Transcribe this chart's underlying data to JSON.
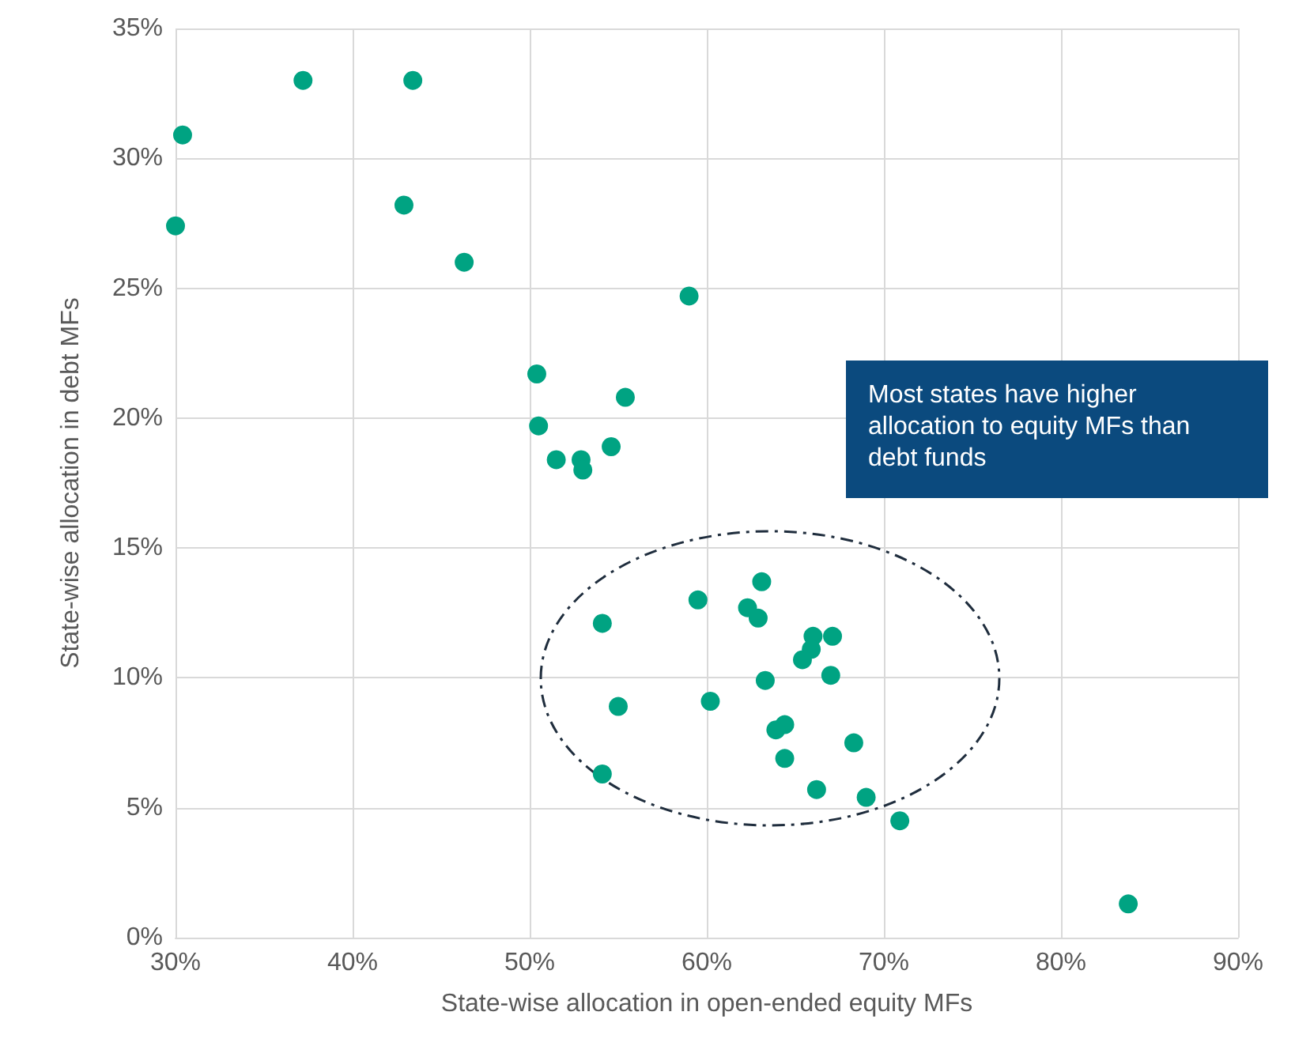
{
  "chart_data": {
    "type": "scatter",
    "xlabel": "State-wise allocation in open-ended equity MFs",
    "ylabel": "State-wise allocation in debt MFs",
    "annotations": [
      "Most states have higher allocation to equity MFs than debt funds"
    ],
    "x": [
      30.0,
      30.4,
      37.2,
      43.4,
      42.9,
      46.3,
      59.0,
      50.4,
      50.5,
      55.4,
      51.5,
      52.9,
      53.0,
      54.6,
      63.1,
      59.5,
      62.3,
      62.9,
      54.1,
      66.0,
      67.1,
      65.9,
      65.4,
      63.3,
      67.0,
      60.2,
      55.0,
      64.4,
      63.9,
      68.3,
      64.4,
      54.1,
      66.2,
      69.0,
      70.9,
      83.8
    ],
    "values": [
      27.4,
      30.9,
      33.0,
      33.0,
      28.2,
      26.0,
      24.7,
      21.7,
      19.7,
      20.8,
      18.4,
      18.4,
      18.0,
      18.9,
      13.7,
      13.0,
      12.7,
      12.3,
      12.1,
      11.6,
      11.6,
      11.1,
      10.7,
      9.9,
      10.1,
      9.1,
      8.9,
      8.2,
      8.0,
      7.5,
      6.9,
      6.3,
      5.7,
      5.4,
      4.5,
      1.3
    ],
    "color": "#00a382",
    "marker": "circle",
    "grid": true,
    "xlim": [
      30,
      90
    ],
    "xticks": [
      {
        "value": 30,
        "label": "30%"
      },
      {
        "value": 40,
        "label": "40%"
      },
      {
        "value": 50,
        "label": "50%"
      },
      {
        "value": 60,
        "label": "60%"
      },
      {
        "value": 70,
        "label": "70%"
      },
      {
        "value": 80,
        "label": "80%"
      },
      {
        "value": 90,
        "label": "90%"
      }
    ],
    "ylim": [
      0,
      35
    ],
    "yticks": [
      {
        "value": 0,
        "label": "0%"
      },
      {
        "value": 5,
        "label": "5%"
      },
      {
        "value": 10,
        "label": "10%"
      },
      {
        "value": 15,
        "label": "15%"
      },
      {
        "value": 20,
        "label": "20%"
      },
      {
        "value": 25,
        "label": "25%"
      },
      {
        "value": 30,
        "label": "30%"
      },
      {
        "value": 35,
        "label": "35%"
      }
    ]
  }
}
